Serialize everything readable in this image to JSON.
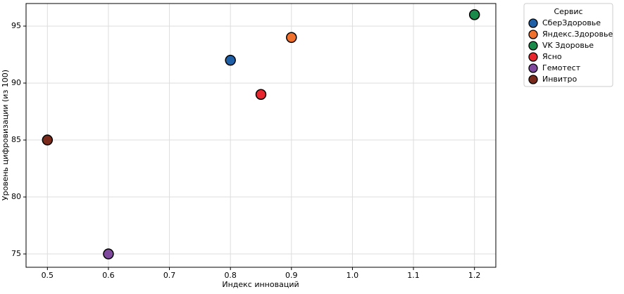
{
  "chart_data": {
    "type": "scatter",
    "x_label": "Индекс инноваций",
    "y_label": "Уровень цифровизации (из 100)",
    "xlim": [
      0.465,
      1.235
    ],
    "ylim": [
      73.83,
      96.98
    ],
    "xticks": [
      0.5,
      0.6,
      0.7,
      0.8,
      0.9,
      {
        "value": 1,
        "label": "1.0"
      },
      1.1,
      1.2
    ],
    "yticks": [
      75,
      80,
      85,
      90,
      95
    ],
    "grid": true,
    "legend": "right",
    "legend_title": "Сервис",
    "series": [
      {
        "name": "СберЗдоровье",
        "color": "#1f5fa6",
        "x": [
          0.8
        ],
        "y": [
          92
        ]
      },
      {
        "name": "Яндекс.Здоровье",
        "color": "#f0702e",
        "x": [
          0.9
        ],
        "y": [
          94
        ]
      },
      {
        "name": "VK Здоровье",
        "color": "#1a8a4a",
        "x": [
          1.2
        ],
        "y": [
          96
        ]
      },
      {
        "name": "Ясно",
        "color": "#e8262e",
        "x": [
          0.85
        ],
        "y": [
          89
        ]
      },
      {
        "name": "Гемотест",
        "color": "#7f4a9e",
        "x": [
          0.6
        ],
        "y": [
          75
        ]
      },
      {
        "name": "Инвитро",
        "color": "#7a2a1a",
        "x": [
          0.5
        ],
        "y": [
          85
        ]
      }
    ]
  }
}
